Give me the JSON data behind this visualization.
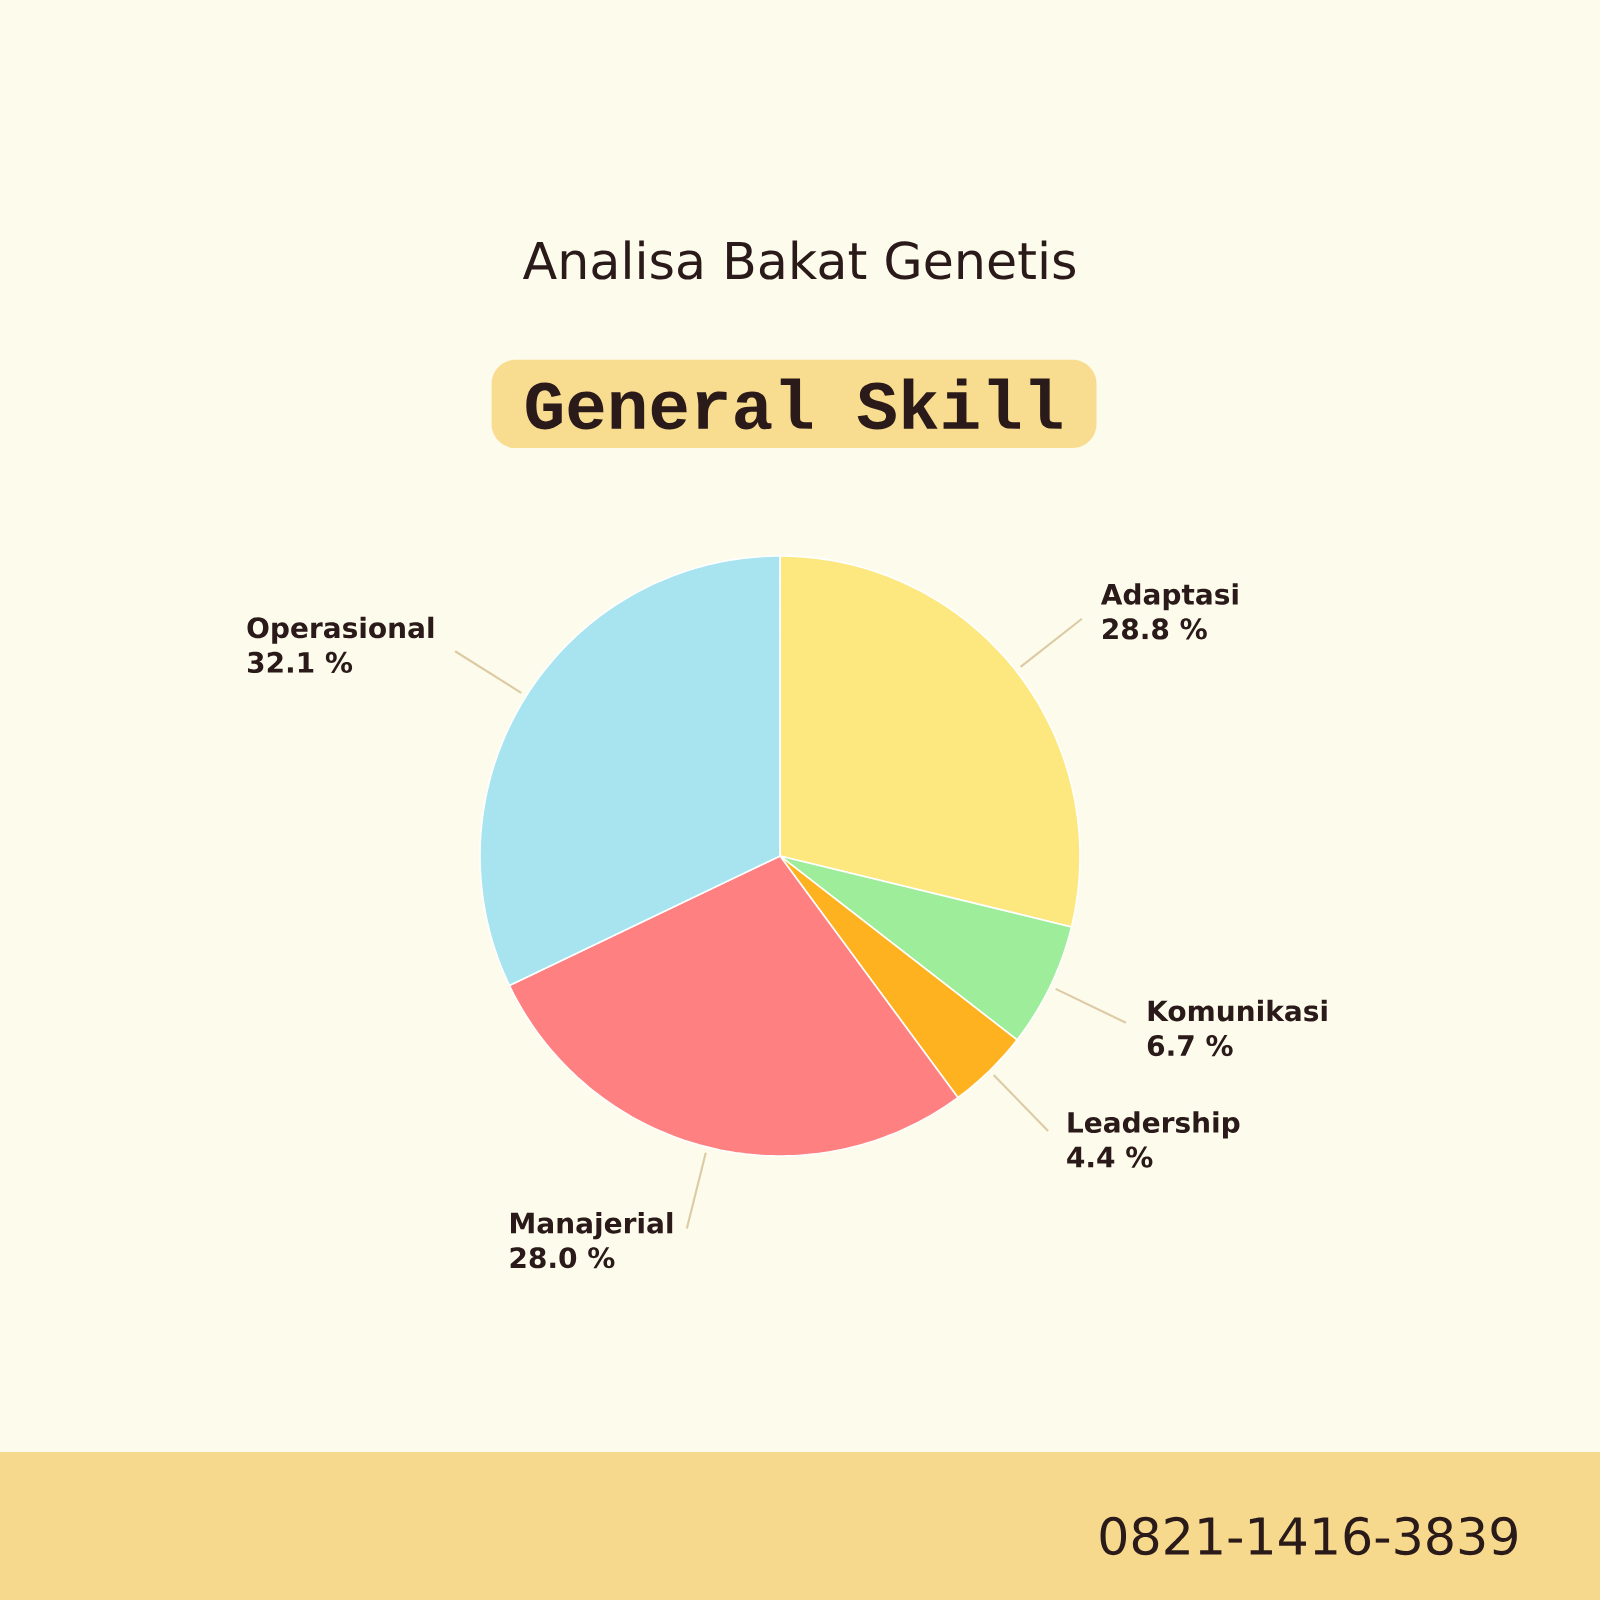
{
  "chart_data": {
    "type": "pie",
    "title": "Analisa Bakat Genetis",
    "subtitle": "General Skill",
    "categories": [
      "Adaptasi",
      "Komunikasi",
      "Leadership",
      "Manajerial",
      "Operasional"
    ],
    "values": [
      28.8,
      6.7,
      4.4,
      28.0,
      32.1
    ],
    "value_labels": [
      "28.8 %",
      "6.7 %",
      "4.4 %",
      "28.0 %",
      "32.1 %"
    ],
    "colors": [
      "#fde880",
      "#9ded9b",
      "#ffb21f",
      "#ff8080",
      "#a8e4f0"
    ],
    "annotations": [
      "0821-1416-3839"
    ]
  }
}
